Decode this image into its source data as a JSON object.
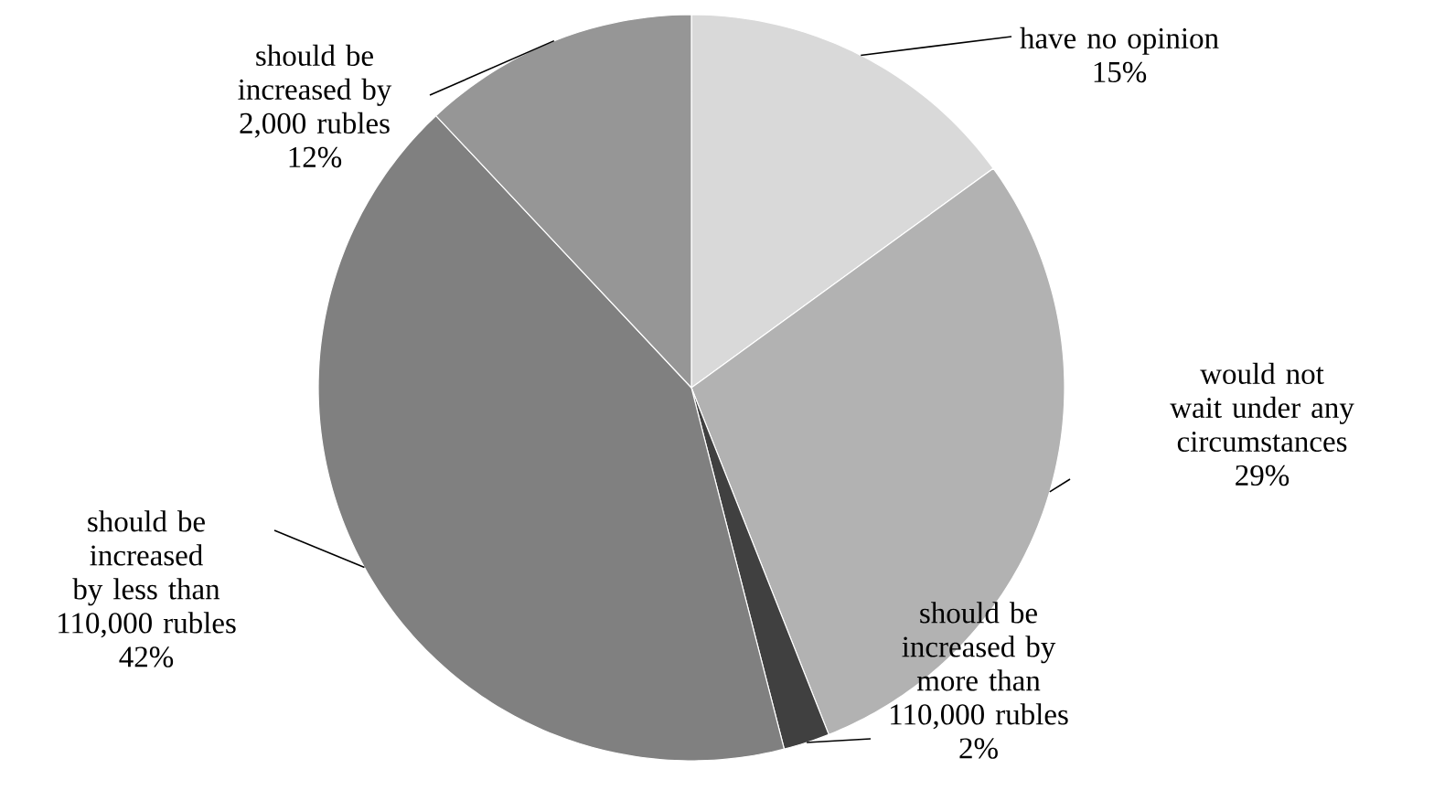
{
  "chart_data": {
    "type": "pie",
    "categories": [
      "have no opinion",
      "would not wait under any circumstances",
      "should be increased by more than 110,000 rubles",
      "should be increased by less than 110,000 rubles",
      "should be increased by 2,000 rubles"
    ],
    "values": [
      15,
      29,
      2,
      42,
      12
    ],
    "value_labels": [
      "15%",
      "29%",
      "2%",
      "42%",
      "12%"
    ],
    "colors": [
      "#d9d9d9",
      "#b2b2b2",
      "#404040",
      "#808080",
      "#969696"
    ]
  }
}
